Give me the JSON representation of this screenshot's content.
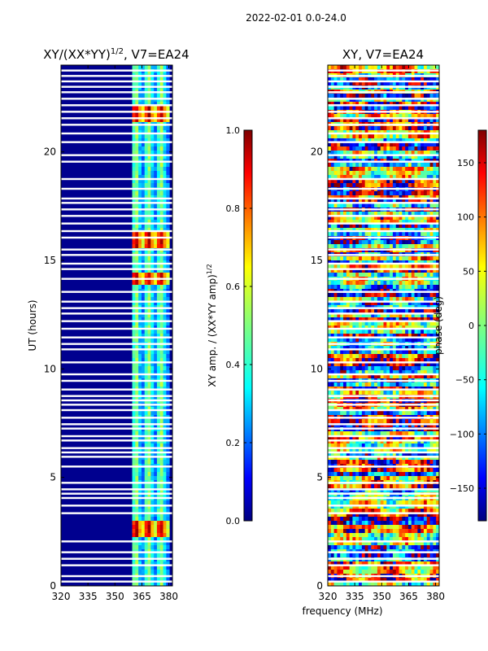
{
  "suptitle": "2022-02-01 0.0-24.0",
  "colors": {
    "jet": [
      "#00007f",
      "#0000ff",
      "#007fff",
      "#00ffff",
      "#7fff7f",
      "#ffff00",
      "#ff7f00",
      "#ff0000",
      "#7f0000"
    ],
    "background_blue": "#00008f",
    "gap": "#ffffff"
  },
  "chart_data": [
    {
      "type": "heatmap",
      "panel": "amplitude",
      "title_main": "XY/(XX*YY)",
      "title_power": "1/2",
      "title_suffix": ", V7=EA24",
      "xlabel": "",
      "ylabel": "UT (hours)",
      "x_ticks": [
        "320",
        "335",
        "350",
        "365",
        "380"
      ],
      "x_tick_values": [
        320,
        335,
        350,
        365,
        380
      ],
      "xlim": [
        320,
        382
      ],
      "y_ticks": [
        "0",
        "5",
        "10",
        "15",
        "20"
      ],
      "y_tick_values": [
        0,
        5,
        10,
        15,
        20
      ],
      "ylim": [
        0,
        24
      ],
      "bright_band_MHz": [
        360,
        380
      ],
      "high_amplitude_hours": [
        [
          2.2,
          3.0
        ],
        [
          13.8,
          14.4
        ],
        [
          15.6,
          16.3
        ],
        [
          21.3,
          22.1
        ]
      ],
      "colorbar": {
        "label_main": "XY amp. / (XX*YY amp)",
        "label_power": "1/2",
        "range": [
          0.0,
          1.0
        ],
        "ticks": [
          "0.0",
          "0.2",
          "0.4",
          "0.6",
          "0.8",
          "1.0"
        ],
        "tick_values": [
          0.0,
          0.2,
          0.4,
          0.6,
          0.8,
          1.0
        ]
      }
    },
    {
      "type": "heatmap",
      "panel": "phase",
      "title_main": "XY, V7=EA24",
      "xlabel": "frequency (MHz)",
      "ylabel": "",
      "x_ticks": [
        "320",
        "335",
        "350",
        "365",
        "380"
      ],
      "x_tick_values": [
        320,
        335,
        350,
        365,
        380
      ],
      "xlim": [
        320,
        382
      ],
      "y_ticks": [
        "0",
        "5",
        "10",
        "15",
        "20"
      ],
      "y_tick_values": [
        0,
        5,
        10,
        15,
        20
      ],
      "ylim": [
        0,
        24
      ],
      "colorbar": {
        "label_main": "phase (deg)",
        "range": [
          -180,
          180
        ],
        "ticks": [
          "150",
          "100",
          "50",
          "0",
          "−50",
          "−100",
          "−150"
        ],
        "tick_values": [
          150,
          100,
          50,
          0,
          -50,
          -100,
          -150
        ]
      }
    }
  ],
  "gaps_hours": [
    0.2,
    0.45,
    0.95,
    1.25,
    1.55,
    2.05,
    3.35,
    3.7,
    4.05,
    4.25,
    4.45,
    4.75,
    5.5,
    5.95,
    6.15,
    6.35,
    6.7,
    6.9,
    7.25,
    7.45,
    7.75,
    8.1,
    8.35,
    8.55,
    8.75,
    9.05,
    9.45,
    9.75,
    10.3,
    10.9,
    11.15,
    11.45,
    11.85,
    12.2,
    12.55,
    12.8,
    13.1,
    13.55,
    14.15,
    14.6,
    14.85,
    15.25,
    15.5,
    16.05,
    16.35,
    16.7,
    17.05,
    17.35,
    17.65,
    17.85,
    18.3,
    18.75,
    19.55,
    19.85,
    20.45,
    20.85,
    21.25,
    21.55,
    21.85,
    22.15,
    22.45,
    22.75,
    23.0,
    23.25,
    23.5,
    23.75
  ]
}
